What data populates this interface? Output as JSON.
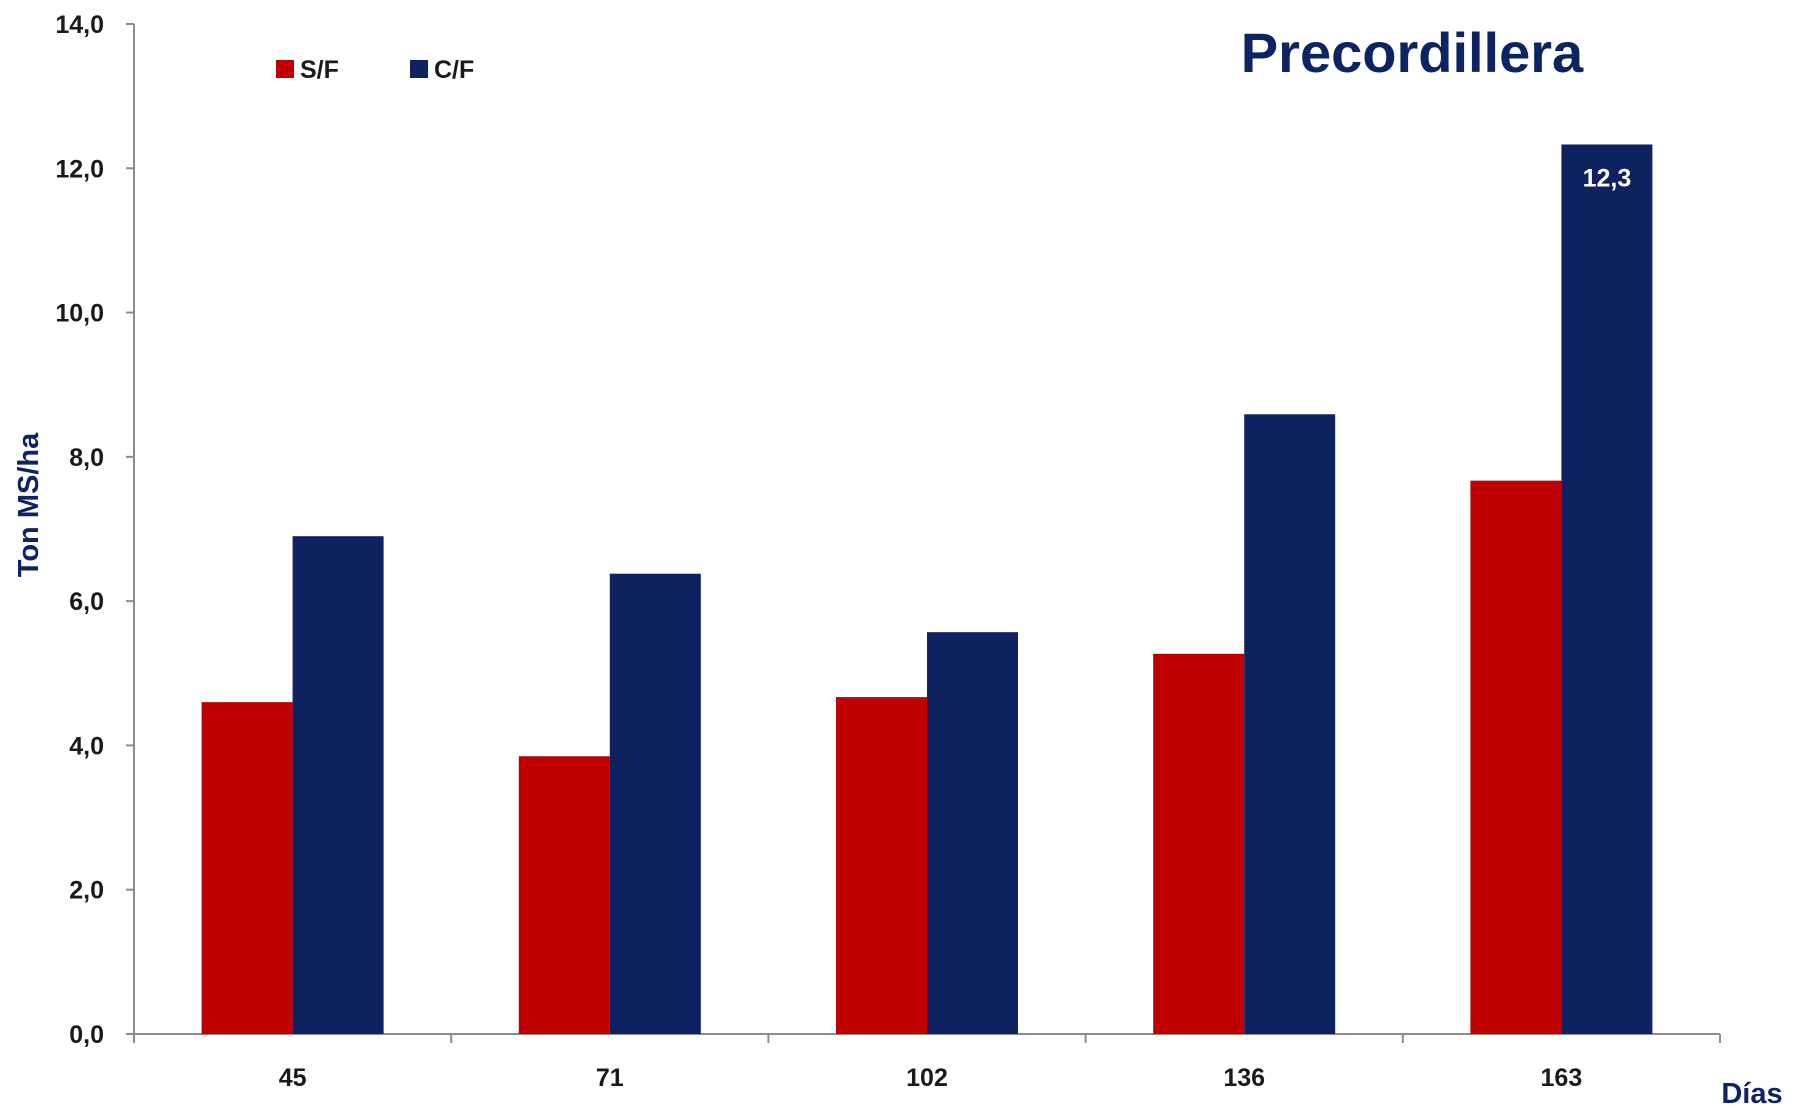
{
  "chart_data": {
    "type": "bar",
    "title": "Precordillera",
    "xlabel": "Días",
    "ylabel": "Ton MS/ha",
    "categories": [
      "45",
      "71",
      "102",
      "136",
      "163"
    ],
    "series": [
      {
        "name": "S/F",
        "color": "#c00000",
        "values": [
          4.6,
          3.85,
          4.67,
          5.27,
          7.67
        ]
      },
      {
        "name": "C/F",
        "color": "#0e2160",
        "values": [
          6.9,
          6.38,
          5.57,
          8.59,
          12.33
        ]
      }
    ],
    "ylim": [
      0,
      14
    ],
    "yticks": [
      "0,0",
      "2,0",
      "4,0",
      "6,0",
      "8,0",
      "10,0",
      "12,0",
      "14,0"
    ],
    "data_labels": [
      {
        "series": 1,
        "category": 4,
        "text": "12,3"
      }
    ],
    "grid": false,
    "legend_position": "top-left"
  }
}
